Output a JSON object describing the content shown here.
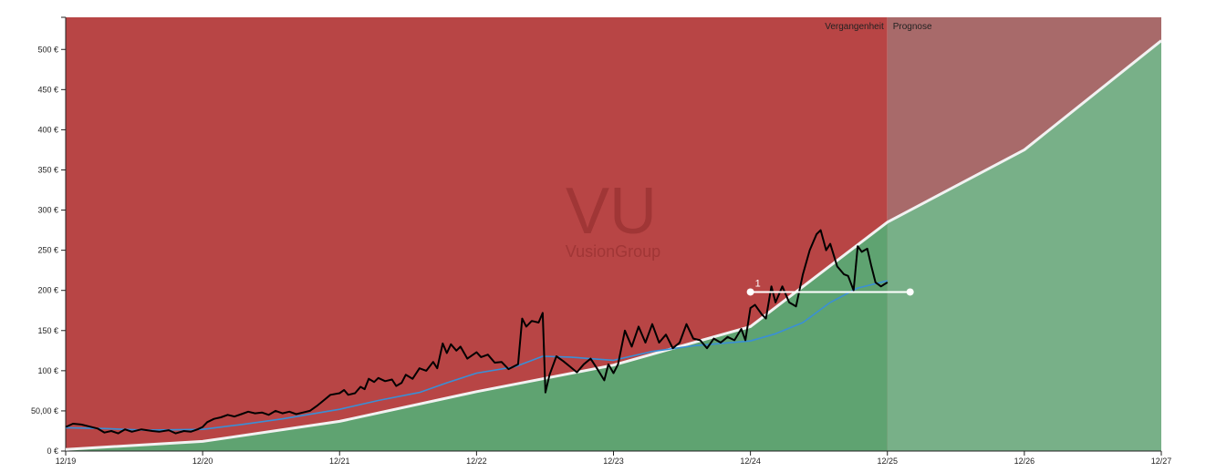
{
  "chart_data": {
    "type": "line",
    "title": "",
    "xlabel": "",
    "ylabel": "",
    "x_ticks": [
      "12/19",
      "12/20",
      "12/21",
      "12/22",
      "12/23",
      "12/24",
      "12/25",
      "12/26",
      "12/27"
    ],
    "y_ticks": [
      {
        "value": 0,
        "label": "0 €"
      },
      {
        "value": 50,
        "label": "50,00 €"
      },
      {
        "value": 100,
        "label": "100 €"
      },
      {
        "value": 150,
        "label": "150 €"
      },
      {
        "value": 200,
        "label": "200 €"
      },
      {
        "value": 250,
        "label": "250 €"
      },
      {
        "value": 300,
        "label": "300 €"
      },
      {
        "value": 350,
        "label": "350 €"
      },
      {
        "value": 400,
        "label": "400 €"
      },
      {
        "value": 450,
        "label": "450 €"
      },
      {
        "value": 500,
        "label": "500 €"
      }
    ],
    "xlim": [
      2019.917,
      2027.917
    ],
    "ylim": [
      0,
      540
    ],
    "forecast_start": 2025.917,
    "band_labels": {
      "past": "Vergangenheit",
      "forecast": "Prognose"
    },
    "watermark": {
      "ticker": "VU",
      "name": "VusionGroup"
    },
    "colors": {
      "overvalued": "#b84545",
      "undervalued": "#5fa371",
      "forecast_overvalued": "#a86a6a",
      "forecast_undervalued": "#78b088",
      "price_line": "#000000",
      "average_line": "#3a8fd6",
      "fair_value_line": "#f2f2f2"
    },
    "fair_value": [
      [
        2019.917,
        2
      ],
      [
        2020.917,
        12
      ],
      [
        2021.917,
        37
      ],
      [
        2022.917,
        74
      ],
      [
        2023.917,
        107
      ],
      [
        2024.917,
        155
      ],
      [
        2025.917,
        285
      ],
      [
        2026.917,
        375
      ],
      [
        2027.917,
        511
      ]
    ],
    "price": [
      [
        2019.917,
        30
      ],
      [
        2019.97,
        34
      ],
      [
        2020.03,
        33
      ],
      [
        2020.08,
        31
      ],
      [
        2020.15,
        28
      ],
      [
        2020.2,
        23
      ],
      [
        2020.25,
        25
      ],
      [
        2020.3,
        22
      ],
      [
        2020.35,
        27
      ],
      [
        2020.4,
        24
      ],
      [
        2020.47,
        27
      ],
      [
        2020.55,
        25
      ],
      [
        2020.6,
        24
      ],
      [
        2020.67,
        26
      ],
      [
        2020.72,
        22
      ],
      [
        2020.78,
        25
      ],
      [
        2020.83,
        24
      ],
      [
        2020.88,
        27
      ],
      [
        2020.917,
        30
      ],
      [
        2020.95,
        36
      ],
      [
        2021.0,
        40
      ],
      [
        2021.05,
        42
      ],
      [
        2021.1,
        45
      ],
      [
        2021.15,
        43
      ],
      [
        2021.2,
        46
      ],
      [
        2021.25,
        49
      ],
      [
        2021.3,
        47
      ],
      [
        2021.35,
        48
      ],
      [
        2021.4,
        45
      ],
      [
        2021.45,
        50
      ],
      [
        2021.5,
        47
      ],
      [
        2021.55,
        49
      ],
      [
        2021.6,
        46
      ],
      [
        2021.65,
        48
      ],
      [
        2021.7,
        50
      ],
      [
        2021.75,
        56
      ],
      [
        2021.8,
        63
      ],
      [
        2021.85,
        70
      ],
      [
        2021.917,
        72
      ],
      [
        2021.95,
        76
      ],
      [
        2021.98,
        70
      ],
      [
        2022.03,
        72
      ],
      [
        2022.07,
        80
      ],
      [
        2022.1,
        77
      ],
      [
        2022.13,
        90
      ],
      [
        2022.17,
        86
      ],
      [
        2022.2,
        91
      ],
      [
        2022.25,
        87
      ],
      [
        2022.3,
        89
      ],
      [
        2022.33,
        81
      ],
      [
        2022.37,
        85
      ],
      [
        2022.4,
        95
      ],
      [
        2022.45,
        90
      ],
      [
        2022.5,
        103
      ],
      [
        2022.55,
        100
      ],
      [
        2022.6,
        111
      ],
      [
        2022.63,
        103
      ],
      [
        2022.67,
        134
      ],
      [
        2022.7,
        122
      ],
      [
        2022.73,
        133
      ],
      [
        2022.77,
        125
      ],
      [
        2022.8,
        130
      ],
      [
        2022.85,
        115
      ],
      [
        2022.917,
        123
      ],
      [
        2022.95,
        117
      ],
      [
        2023.0,
        120
      ],
      [
        2023.05,
        110
      ],
      [
        2023.1,
        111
      ],
      [
        2023.15,
        102
      ],
      [
        2023.22,
        108
      ],
      [
        2023.25,
        165
      ],
      [
        2023.28,
        155
      ],
      [
        2023.32,
        162
      ],
      [
        2023.37,
        160
      ],
      [
        2023.4,
        172
      ],
      [
        2023.42,
        73
      ],
      [
        2023.45,
        95
      ],
      [
        2023.5,
        118
      ],
      [
        2023.55,
        112
      ],
      [
        2023.6,
        105
      ],
      [
        2023.65,
        98
      ],
      [
        2023.7,
        108
      ],
      [
        2023.75,
        115
      ],
      [
        2023.8,
        102
      ],
      [
        2023.85,
        88
      ],
      [
        2023.88,
        108
      ],
      [
        2023.917,
        97
      ],
      [
        2023.95,
        108
      ],
      [
        2024.0,
        150
      ],
      [
        2024.05,
        130
      ],
      [
        2024.1,
        155
      ],
      [
        2024.15,
        135
      ],
      [
        2024.2,
        158
      ],
      [
        2024.25,
        135
      ],
      [
        2024.3,
        145
      ],
      [
        2024.35,
        128
      ],
      [
        2024.4,
        135
      ],
      [
        2024.45,
        158
      ],
      [
        2024.5,
        140
      ],
      [
        2024.55,
        138
      ],
      [
        2024.6,
        128
      ],
      [
        2024.65,
        140
      ],
      [
        2024.7,
        135
      ],
      [
        2024.75,
        142
      ],
      [
        2024.8,
        138
      ],
      [
        2024.85,
        152
      ],
      [
        2024.88,
        138
      ],
      [
        2024.917,
        178
      ],
      [
        2024.95,
        182
      ],
      [
        2025.0,
        170
      ],
      [
        2025.03,
        165
      ],
      [
        2025.07,
        205
      ],
      [
        2025.1,
        185
      ],
      [
        2025.15,
        205
      ],
      [
        2025.2,
        185
      ],
      [
        2025.25,
        180
      ],
      [
        2025.3,
        220
      ],
      [
        2025.35,
        250
      ],
      [
        2025.4,
        270
      ],
      [
        2025.43,
        275
      ],
      [
        2025.47,
        250
      ],
      [
        2025.5,
        258
      ],
      [
        2025.55,
        230
      ],
      [
        2025.6,
        220
      ],
      [
        2025.63,
        218
      ],
      [
        2025.67,
        200
      ],
      [
        2025.7,
        255
      ],
      [
        2025.73,
        248
      ],
      [
        2025.77,
        252
      ],
      [
        2025.8,
        230
      ],
      [
        2025.83,
        210
      ],
      [
        2025.87,
        205
      ],
      [
        2025.917,
        210
      ]
    ],
    "average": [
      [
        2019.917,
        29
      ],
      [
        2020.2,
        28
      ],
      [
        2020.5,
        26
      ],
      [
        2020.917,
        27
      ],
      [
        2021.2,
        33
      ],
      [
        2021.5,
        40
      ],
      [
        2021.917,
        52
      ],
      [
        2022.2,
        63
      ],
      [
        2022.5,
        73
      ],
      [
        2022.7,
        85
      ],
      [
        2022.917,
        97
      ],
      [
        2023.2,
        105
      ],
      [
        2023.4,
        118
      ],
      [
        2023.6,
        117
      ],
      [
        2023.917,
        113
      ],
      [
        2024.2,
        124
      ],
      [
        2024.5,
        131
      ],
      [
        2024.917,
        137
      ],
      [
        2025.1,
        146
      ],
      [
        2025.3,
        160
      ],
      [
        2025.5,
        185
      ],
      [
        2025.7,
        203
      ],
      [
        2025.917,
        212
      ]
    ],
    "reference_line": {
      "label": "1",
      "value": 198,
      "x_start": 2024.917,
      "x_end": 2026.083
    }
  }
}
